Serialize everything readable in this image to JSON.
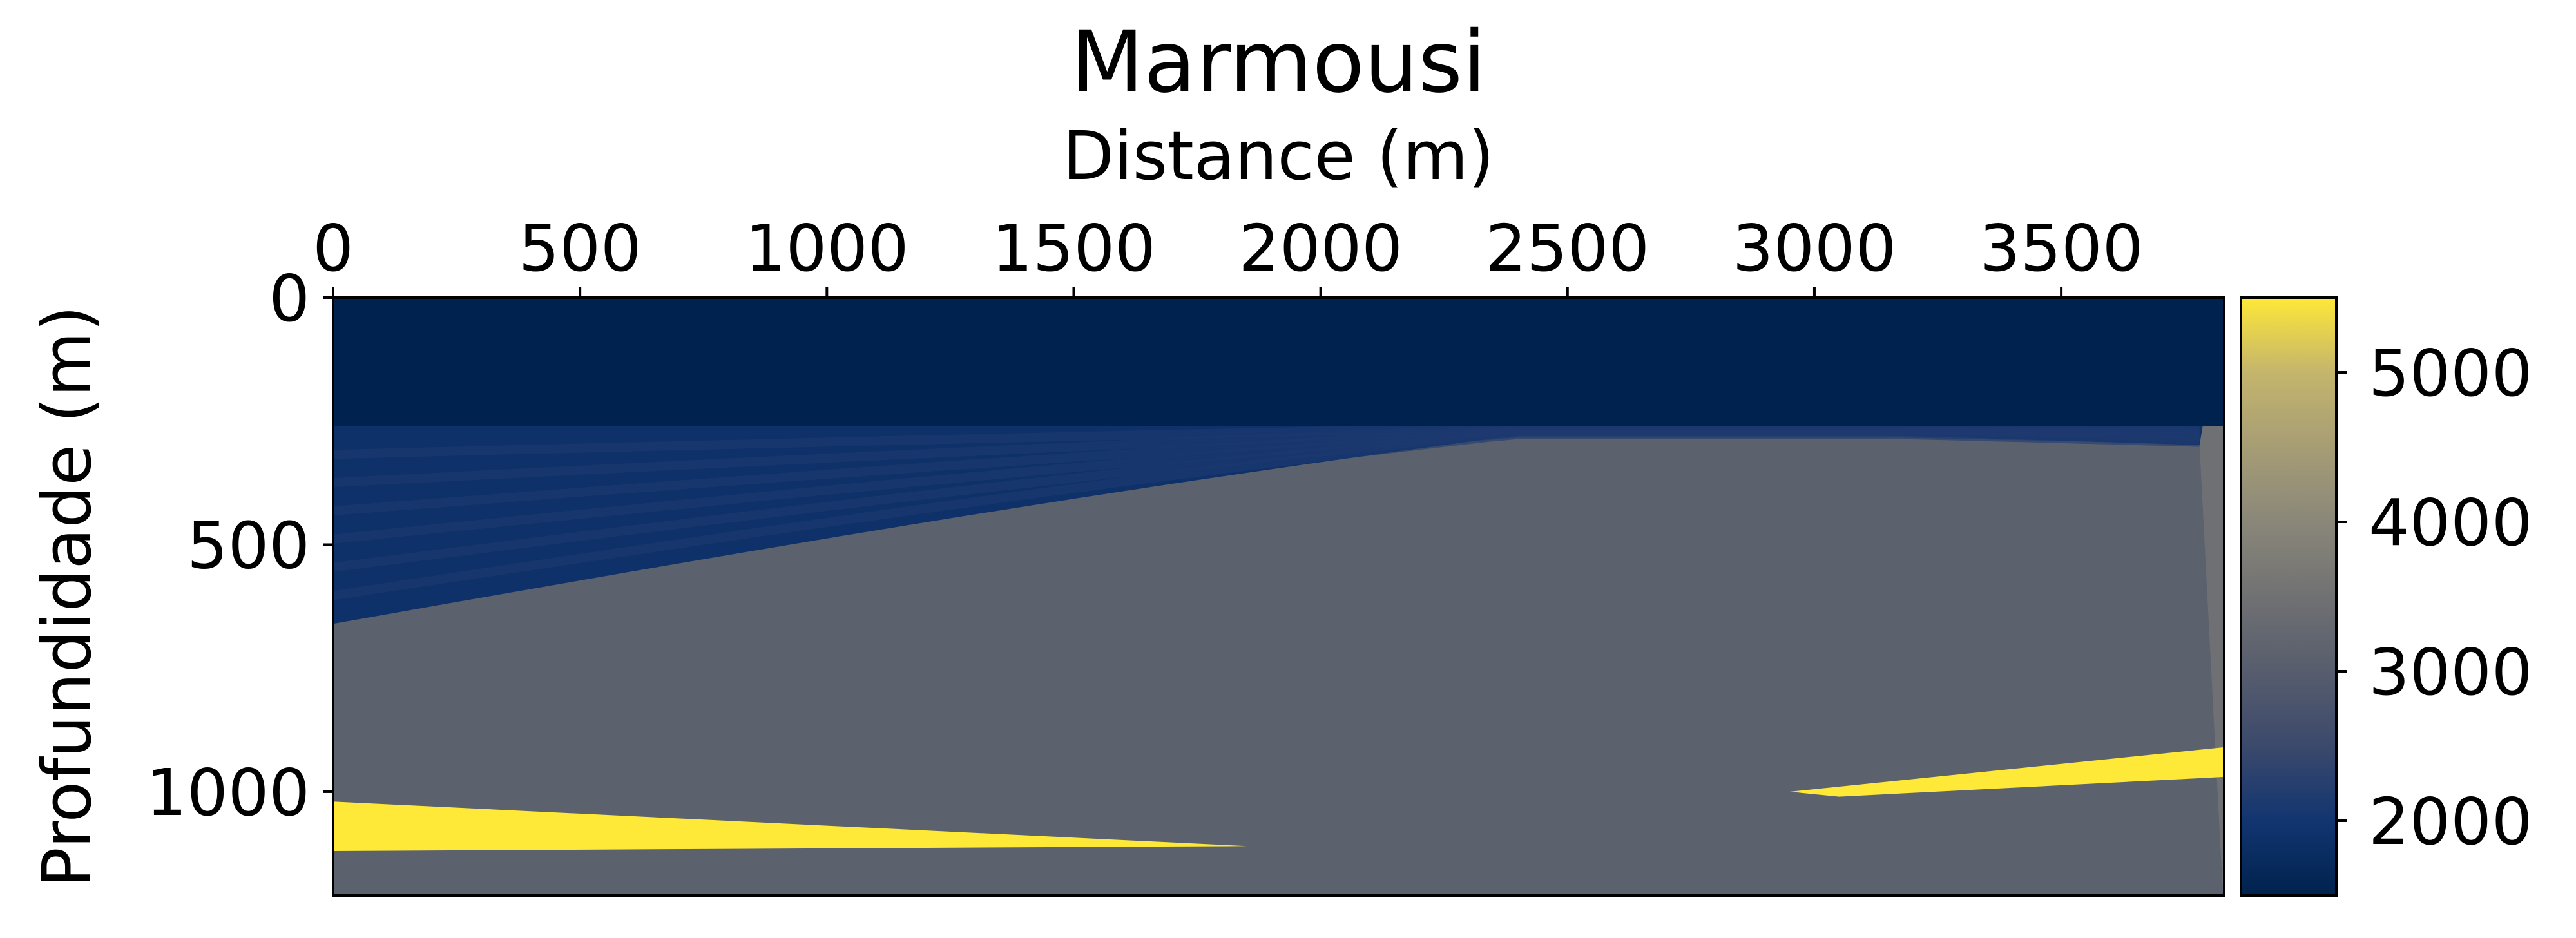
{
  "chart_data": {
    "type": "heatmap",
    "title": "Marmousi",
    "xlabel": "Distance (m)",
    "ylabel": "Profundidade (m)",
    "x_axis_position": "top",
    "y_inverted": true,
    "xlim": [
      0,
      3830
    ],
    "ylim": [
      1210,
      0
    ],
    "x_ticks": [
      0,
      500,
      1000,
      1500,
      2000,
      2500,
      3000,
      3500
    ],
    "y_ticks": [
      0,
      500,
      1000
    ],
    "colormap": "cividis",
    "colorbar": {
      "range": [
        1500,
        5500
      ],
      "ticks": [
        2000,
        3000,
        4000,
        5000
      ],
      "position": "right"
    },
    "water_layer": {
      "velocity": 1500,
      "depth_bottom": 260
    },
    "low_velocity_zone": {
      "velocity": 1900,
      "depth_bottom_at_x0": 660,
      "depth_bottom_at_x2500": 300
    },
    "high_velocity_wedges": [
      {
        "velocity": 5500,
        "x_start": 0,
        "x_end": 1850,
        "depth_top": 1020,
        "depth_bottom": 1120
      },
      {
        "velocity": 5500,
        "x_start": 2950,
        "x_end": 3830,
        "depth_top_left": 1000,
        "depth_top_right": 910
      }
    ],
    "grid": false
  },
  "colors": {
    "cividis_low": "#00224e",
    "cividis_mid": "#7c7b78",
    "cividis_high": "#fee838"
  }
}
